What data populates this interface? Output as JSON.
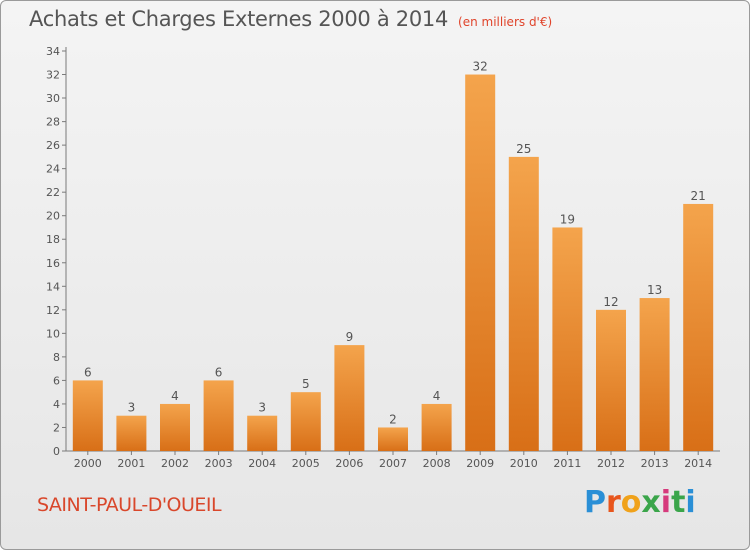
{
  "header": {
    "title": "Achats et Charges Externes 2000 à 2014",
    "unit": "(en milliers d'€)"
  },
  "footer": {
    "place": "SAINT-PAUL-D'OUEIL",
    "logo": "Proxiti"
  },
  "colors": {
    "bar_light": "#f4a44c",
    "bar_dark": "#d86f17",
    "text": "#555555",
    "accent": "#d9472b"
  },
  "chart_data": {
    "type": "bar",
    "title": "Achats et Charges Externes 2000 à 2014",
    "subtitle": "(en milliers d'€)",
    "xlabel": "",
    "ylabel": "",
    "categories": [
      "2000",
      "2001",
      "2002",
      "2003",
      "2004",
      "2005",
      "2006",
      "2007",
      "2008",
      "2009",
      "2010",
      "2011",
      "2012",
      "2013",
      "2014"
    ],
    "values": [
      6,
      3,
      4,
      6,
      3,
      5,
      9,
      2,
      4,
      32,
      25,
      19,
      12,
      13,
      21
    ],
    "ylim": [
      0,
      34
    ],
    "yticks": [
      0,
      2,
      4,
      6,
      8,
      10,
      12,
      14,
      16,
      18,
      20,
      22,
      24,
      26,
      28,
      30,
      32,
      34
    ],
    "grid": false,
    "data_labels": true
  }
}
